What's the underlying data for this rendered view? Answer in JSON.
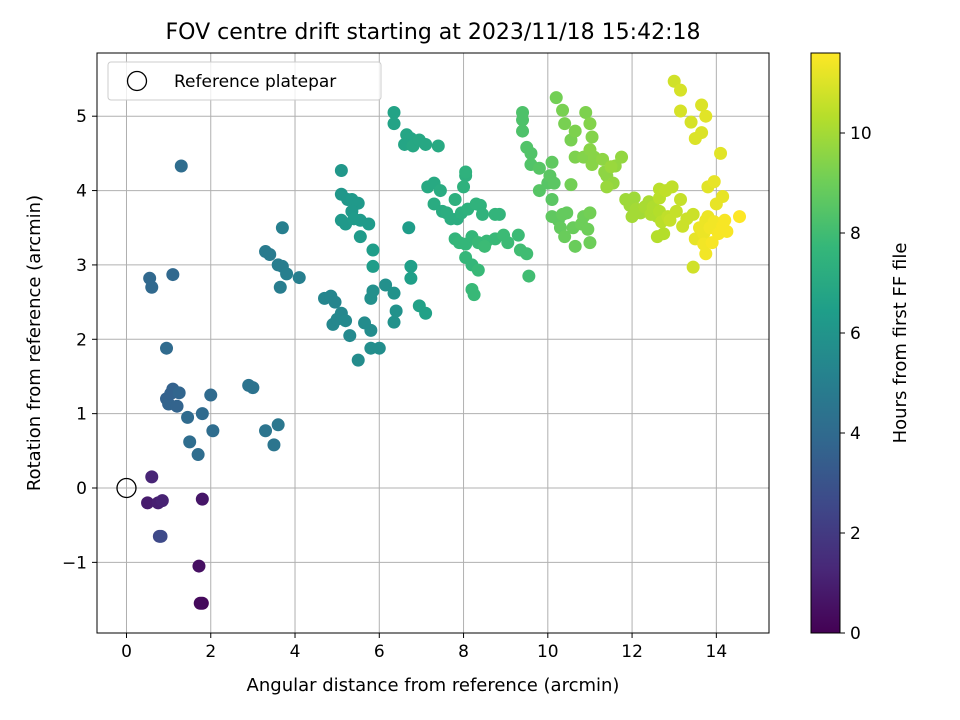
{
  "chart_data": {
    "type": "scatter",
    "title": "FOV centre drift starting at 2023/11/18 15:42:18",
    "xlabel": "Angular distance from reference (arcmin)",
    "ylabel": "Rotation from reference (arcmin)",
    "xlim": [
      -0.7,
      15.25
    ],
    "ylim": [
      -1.95,
      5.85
    ],
    "xticks": [
      0,
      2,
      4,
      6,
      8,
      10,
      12,
      14
    ],
    "yticks": [
      -1,
      0,
      1,
      2,
      3,
      4,
      5
    ],
    "grid": true,
    "legend": {
      "placement": "top-left",
      "entries": [
        "Reference platepar"
      ]
    },
    "reference_point": {
      "x": 0,
      "y": 0
    },
    "colorbar": {
      "label": "Hours from first FF file",
      "range": [
        0,
        11.6
      ],
      "ticks": [
        0,
        2,
        4,
        6,
        8,
        10
      ],
      "colormap": "viridis",
      "stops": [
        "#440154",
        "#482878",
        "#3e4989",
        "#31688e",
        "#26828e",
        "#1f9e89",
        "#35b779",
        "#6ece58",
        "#b5de2b",
        "#fde725"
      ]
    },
    "points": [
      {
        "x": 1.8,
        "y": -1.55,
        "c": 0.2
      },
      {
        "x": 1.75,
        "y": -1.55,
        "c": 0.3
      },
      {
        "x": 1.72,
        "y": -1.05,
        "c": 0.5
      },
      {
        "x": 1.8,
        "y": -0.15,
        "c": 0.7
      },
      {
        "x": 0.5,
        "y": -0.2,
        "c": 0.9
      },
      {
        "x": 0.75,
        "y": -0.2,
        "c": 1.0
      },
      {
        "x": 0.85,
        "y": -0.17,
        "c": 1.1
      },
      {
        "x": 0.6,
        "y": 0.15,
        "c": 1.2
      },
      {
        "x": 0.78,
        "y": -0.65,
        "c": 2.5
      },
      {
        "x": 0.82,
        "y": -0.65,
        "c": 2.6
      },
      {
        "x": 0.95,
        "y": 1.2,
        "c": 3.6
      },
      {
        "x": 1.0,
        "y": 1.13,
        "c": 3.7
      },
      {
        "x": 1.05,
        "y": 1.27,
        "c": 3.6
      },
      {
        "x": 1.1,
        "y": 1.33,
        "c": 3.6
      },
      {
        "x": 1.2,
        "y": 1.1,
        "c": 3.7
      },
      {
        "x": 1.25,
        "y": 1.28,
        "c": 3.8
      },
      {
        "x": 1.45,
        "y": 0.95,
        "c": 4.0
      },
      {
        "x": 1.5,
        "y": 0.62,
        "c": 4.1
      },
      {
        "x": 1.7,
        "y": 0.45,
        "c": 4.1
      },
      {
        "x": 1.8,
        "y": 1.0,
        "c": 4.0
      },
      {
        "x": 2.0,
        "y": 1.25,
        "c": 4.0
      },
      {
        "x": 2.05,
        "y": 0.77,
        "c": 4.1
      },
      {
        "x": 0.55,
        "y": 2.82,
        "c": 3.9
      },
      {
        "x": 0.6,
        "y": 2.7,
        "c": 3.9
      },
      {
        "x": 1.1,
        "y": 2.87,
        "c": 3.9
      },
      {
        "x": 0.95,
        "y": 1.88,
        "c": 4.0
      },
      {
        "x": 1.3,
        "y": 4.33,
        "c": 4.1
      },
      {
        "x": 2.9,
        "y": 1.38,
        "c": 4.4
      },
      {
        "x": 3.0,
        "y": 1.35,
        "c": 4.4
      },
      {
        "x": 3.3,
        "y": 0.77,
        "c": 4.5
      },
      {
        "x": 3.5,
        "y": 0.58,
        "c": 4.5
      },
      {
        "x": 3.6,
        "y": 0.85,
        "c": 4.6
      },
      {
        "x": 3.3,
        "y": 3.18,
        "c": 4.8
      },
      {
        "x": 3.4,
        "y": 3.14,
        "c": 4.8
      },
      {
        "x": 3.6,
        "y": 3.0,
        "c": 4.9
      },
      {
        "x": 3.7,
        "y": 2.98,
        "c": 4.9
      },
      {
        "x": 3.8,
        "y": 2.88,
        "c": 5.0
      },
      {
        "x": 3.65,
        "y": 2.7,
        "c": 4.9
      },
      {
        "x": 3.7,
        "y": 3.5,
        "c": 5.0
      },
      {
        "x": 4.1,
        "y": 2.83,
        "c": 5.0
      },
      {
        "x": 4.7,
        "y": 2.55,
        "c": 5.3
      },
      {
        "x": 4.85,
        "y": 2.58,
        "c": 5.3
      },
      {
        "x": 4.95,
        "y": 2.5,
        "c": 5.3
      },
      {
        "x": 4.9,
        "y": 2.2,
        "c": 5.4
      },
      {
        "x": 5.0,
        "y": 2.27,
        "c": 5.4
      },
      {
        "x": 5.1,
        "y": 2.35,
        "c": 5.4
      },
      {
        "x": 5.2,
        "y": 2.25,
        "c": 5.5
      },
      {
        "x": 5.3,
        "y": 2.05,
        "c": 5.5
      },
      {
        "x": 5.5,
        "y": 1.72,
        "c": 5.6
      },
      {
        "x": 5.65,
        "y": 2.22,
        "c": 5.6
      },
      {
        "x": 5.8,
        "y": 2.12,
        "c": 5.6
      },
      {
        "x": 5.8,
        "y": 1.88,
        "c": 5.7
      },
      {
        "x": 6.0,
        "y": 1.88,
        "c": 5.7
      },
      {
        "x": 5.8,
        "y": 2.55,
        "c": 5.8
      },
      {
        "x": 5.85,
        "y": 2.65,
        "c": 5.8
      },
      {
        "x": 6.15,
        "y": 2.73,
        "c": 5.8
      },
      {
        "x": 6.35,
        "y": 2.62,
        "c": 5.9
      },
      {
        "x": 6.35,
        "y": 2.23,
        "c": 5.9
      },
      {
        "x": 6.4,
        "y": 2.38,
        "c": 5.9
      },
      {
        "x": 5.1,
        "y": 4.27,
        "c": 6.1
      },
      {
        "x": 5.1,
        "y": 3.95,
        "c": 6.1
      },
      {
        "x": 5.25,
        "y": 3.88,
        "c": 6.1
      },
      {
        "x": 5.35,
        "y": 3.88,
        "c": 6.2
      },
      {
        "x": 5.5,
        "y": 3.83,
        "c": 6.2
      },
      {
        "x": 5.35,
        "y": 3.72,
        "c": 6.2
      },
      {
        "x": 5.1,
        "y": 3.6,
        "c": 6.2
      },
      {
        "x": 5.2,
        "y": 3.55,
        "c": 6.2
      },
      {
        "x": 5.4,
        "y": 3.62,
        "c": 6.3
      },
      {
        "x": 5.55,
        "y": 3.6,
        "c": 6.3
      },
      {
        "x": 5.75,
        "y": 3.55,
        "c": 6.3
      },
      {
        "x": 5.55,
        "y": 3.38,
        "c": 6.3
      },
      {
        "x": 5.85,
        "y": 3.2,
        "c": 6.4
      },
      {
        "x": 5.85,
        "y": 2.98,
        "c": 6.4
      },
      {
        "x": 6.7,
        "y": 3.5,
        "c": 6.4
      },
      {
        "x": 6.75,
        "y": 2.98,
        "c": 6.5
      },
      {
        "x": 6.75,
        "y": 2.82,
        "c": 6.5
      },
      {
        "x": 6.95,
        "y": 2.45,
        "c": 6.6
      },
      {
        "x": 7.1,
        "y": 2.35,
        "c": 6.6
      },
      {
        "x": 6.35,
        "y": 5.05,
        "c": 6.7
      },
      {
        "x": 6.35,
        "y": 4.9,
        "c": 6.7
      },
      {
        "x": 6.65,
        "y": 4.75,
        "c": 6.8
      },
      {
        "x": 6.75,
        "y": 4.7,
        "c": 6.8
      },
      {
        "x": 6.6,
        "y": 4.62,
        "c": 6.8
      },
      {
        "x": 6.8,
        "y": 4.6,
        "c": 6.9
      },
      {
        "x": 6.95,
        "y": 4.68,
        "c": 6.9
      },
      {
        "x": 7.1,
        "y": 4.62,
        "c": 6.9
      },
      {
        "x": 7.4,
        "y": 4.6,
        "c": 7.0
      },
      {
        "x": 7.15,
        "y": 4.05,
        "c": 7.0
      },
      {
        "x": 7.3,
        "y": 4.1,
        "c": 7.0
      },
      {
        "x": 7.45,
        "y": 4.0,
        "c": 7.1
      },
      {
        "x": 7.3,
        "y": 3.82,
        "c": 7.1
      },
      {
        "x": 7.5,
        "y": 3.72,
        "c": 7.1
      },
      {
        "x": 7.6,
        "y": 3.7,
        "c": 7.2
      },
      {
        "x": 7.7,
        "y": 3.62,
        "c": 7.2
      },
      {
        "x": 7.85,
        "y": 3.62,
        "c": 7.2
      },
      {
        "x": 7.95,
        "y": 3.7,
        "c": 7.3
      },
      {
        "x": 7.8,
        "y": 3.88,
        "c": 7.3
      },
      {
        "x": 8.05,
        "y": 4.2,
        "c": 7.3
      },
      {
        "x": 8.05,
        "y": 4.25,
        "c": 7.4
      },
      {
        "x": 8.0,
        "y": 4.05,
        "c": 7.4
      },
      {
        "x": 8.1,
        "y": 3.75,
        "c": 7.4
      },
      {
        "x": 8.3,
        "y": 3.82,
        "c": 7.5
      },
      {
        "x": 8.4,
        "y": 3.8,
        "c": 7.5
      },
      {
        "x": 8.45,
        "y": 3.68,
        "c": 7.5
      },
      {
        "x": 8.75,
        "y": 3.68,
        "c": 7.6
      },
      {
        "x": 8.85,
        "y": 3.68,
        "c": 7.6
      },
      {
        "x": 7.8,
        "y": 3.35,
        "c": 7.6
      },
      {
        "x": 7.9,
        "y": 3.3,
        "c": 7.7
      },
      {
        "x": 8.05,
        "y": 3.28,
        "c": 7.7
      },
      {
        "x": 8.2,
        "y": 3.38,
        "c": 7.7
      },
      {
        "x": 8.35,
        "y": 3.3,
        "c": 7.8
      },
      {
        "x": 8.55,
        "y": 3.32,
        "c": 7.8
      },
      {
        "x": 8.75,
        "y": 3.35,
        "c": 7.8
      },
      {
        "x": 8.95,
        "y": 3.4,
        "c": 7.9
      },
      {
        "x": 9.05,
        "y": 3.3,
        "c": 7.9
      },
      {
        "x": 9.3,
        "y": 3.4,
        "c": 7.9
      },
      {
        "x": 9.35,
        "y": 3.2,
        "c": 8.0
      },
      {
        "x": 9.5,
        "y": 3.15,
        "c": 8.0
      },
      {
        "x": 9.55,
        "y": 2.85,
        "c": 8.0
      },
      {
        "x": 8.05,
        "y": 3.1,
        "c": 7.7
      },
      {
        "x": 8.2,
        "y": 3.0,
        "c": 7.7
      },
      {
        "x": 8.35,
        "y": 2.93,
        "c": 7.8
      },
      {
        "x": 8.2,
        "y": 2.67,
        "c": 7.8
      },
      {
        "x": 8.25,
        "y": 2.6,
        "c": 7.8
      },
      {
        "x": 8.5,
        "y": 3.25,
        "c": 7.9
      },
      {
        "x": 9.4,
        "y": 5.05,
        "c": 8.3
      },
      {
        "x": 9.4,
        "y": 4.95,
        "c": 8.3
      },
      {
        "x": 9.4,
        "y": 4.8,
        "c": 8.3
      },
      {
        "x": 9.5,
        "y": 4.58,
        "c": 8.4
      },
      {
        "x": 9.6,
        "y": 4.5,
        "c": 8.4
      },
      {
        "x": 9.6,
        "y": 4.35,
        "c": 8.4
      },
      {
        "x": 9.8,
        "y": 4.3,
        "c": 8.5
      },
      {
        "x": 9.8,
        "y": 4.0,
        "c": 8.5
      },
      {
        "x": 10.0,
        "y": 4.1,
        "c": 8.5
      },
      {
        "x": 10.05,
        "y": 4.2,
        "c": 8.6
      },
      {
        "x": 10.15,
        "y": 4.1,
        "c": 8.6
      },
      {
        "x": 10.1,
        "y": 3.88,
        "c": 8.6
      },
      {
        "x": 10.1,
        "y": 4.38,
        "c": 8.7
      },
      {
        "x": 10.1,
        "y": 3.65,
        "c": 8.7
      },
      {
        "x": 10.25,
        "y": 3.6,
        "c": 8.7
      },
      {
        "x": 10.35,
        "y": 3.68,
        "c": 8.8
      },
      {
        "x": 10.45,
        "y": 3.7,
        "c": 8.8
      },
      {
        "x": 10.3,
        "y": 3.5,
        "c": 8.8
      },
      {
        "x": 10.4,
        "y": 3.38,
        "c": 8.9
      },
      {
        "x": 10.6,
        "y": 3.5,
        "c": 8.9
      },
      {
        "x": 10.65,
        "y": 3.25,
        "c": 8.9
      },
      {
        "x": 10.8,
        "y": 3.55,
        "c": 9.0
      },
      {
        "x": 10.85,
        "y": 3.65,
        "c": 9.0
      },
      {
        "x": 10.95,
        "y": 3.48,
        "c": 9.0
      },
      {
        "x": 11.0,
        "y": 3.3,
        "c": 9.0
      },
      {
        "x": 11.0,
        "y": 3.7,
        "c": 9.1
      },
      {
        "x": 10.55,
        "y": 4.08,
        "c": 9.1
      },
      {
        "x": 10.2,
        "y": 5.25,
        "c": 9.1
      },
      {
        "x": 10.35,
        "y": 5.08,
        "c": 9.2
      },
      {
        "x": 10.4,
        "y": 4.9,
        "c": 9.2
      },
      {
        "x": 10.55,
        "y": 4.68,
        "c": 9.2
      },
      {
        "x": 10.65,
        "y": 4.8,
        "c": 9.3
      },
      {
        "x": 10.65,
        "y": 4.45,
        "c": 9.3
      },
      {
        "x": 10.9,
        "y": 5.05,
        "c": 9.3
      },
      {
        "x": 11.0,
        "y": 4.9,
        "c": 9.4
      },
      {
        "x": 11.05,
        "y": 4.72,
        "c": 9.4
      },
      {
        "x": 10.85,
        "y": 4.45,
        "c": 9.4
      },
      {
        "x": 11.0,
        "y": 4.55,
        "c": 9.5
      },
      {
        "x": 11.1,
        "y": 4.45,
        "c": 9.5
      },
      {
        "x": 11.05,
        "y": 4.35,
        "c": 9.5
      },
      {
        "x": 11.3,
        "y": 4.42,
        "c": 9.6
      },
      {
        "x": 11.35,
        "y": 4.25,
        "c": 9.6
      },
      {
        "x": 11.4,
        "y": 4.2,
        "c": 9.6
      },
      {
        "x": 11.55,
        "y": 4.1,
        "c": 9.7
      },
      {
        "x": 11.6,
        "y": 4.33,
        "c": 9.7
      },
      {
        "x": 11.75,
        "y": 4.45,
        "c": 9.7
      },
      {
        "x": 11.4,
        "y": 4.05,
        "c": 9.8
      },
      {
        "x": 11.5,
        "y": 4.32,
        "c": 9.8
      },
      {
        "x": 11.85,
        "y": 3.88,
        "c": 9.9
      },
      {
        "x": 11.95,
        "y": 3.8,
        "c": 9.9
      },
      {
        "x": 12.05,
        "y": 3.9,
        "c": 9.9
      },
      {
        "x": 12.1,
        "y": 3.75,
        "c": 10.0
      },
      {
        "x": 12.0,
        "y": 3.65,
        "c": 10.0
      },
      {
        "x": 12.2,
        "y": 3.7,
        "c": 10.0
      },
      {
        "x": 12.3,
        "y": 3.78,
        "c": 10.1
      },
      {
        "x": 12.4,
        "y": 3.85,
        "c": 10.1
      },
      {
        "x": 12.5,
        "y": 3.78,
        "c": 10.2
      },
      {
        "x": 12.45,
        "y": 3.68,
        "c": 10.2
      },
      {
        "x": 12.6,
        "y": 3.65,
        "c": 10.2
      },
      {
        "x": 12.65,
        "y": 3.72,
        "c": 10.3
      },
      {
        "x": 12.6,
        "y": 3.38,
        "c": 10.3
      },
      {
        "x": 12.75,
        "y": 3.42,
        "c": 10.3
      },
      {
        "x": 12.7,
        "y": 3.58,
        "c": 10.4
      },
      {
        "x": 12.65,
        "y": 3.9,
        "c": 10.4
      },
      {
        "x": 12.65,
        "y": 4.02,
        "c": 10.4
      },
      {
        "x": 12.8,
        "y": 4.0,
        "c": 10.5
      },
      {
        "x": 12.95,
        "y": 4.05,
        "c": 10.5
      },
      {
        "x": 12.85,
        "y": 3.65,
        "c": 10.5
      },
      {
        "x": 12.9,
        "y": 3.6,
        "c": 10.6
      },
      {
        "x": 13.05,
        "y": 3.72,
        "c": 10.6
      },
      {
        "x": 13.15,
        "y": 3.88,
        "c": 10.6
      },
      {
        "x": 13.2,
        "y": 3.52,
        "c": 10.7
      },
      {
        "x": 13.3,
        "y": 3.62,
        "c": 10.7
      },
      {
        "x": 13.45,
        "y": 3.68,
        "c": 10.7
      },
      {
        "x": 13.45,
        "y": 2.97,
        "c": 10.8
      },
      {
        "x": 13.0,
        "y": 5.47,
        "c": 10.8
      },
      {
        "x": 13.15,
        "y": 5.35,
        "c": 10.9
      },
      {
        "x": 13.15,
        "y": 5.07,
        "c": 10.9
      },
      {
        "x": 13.4,
        "y": 4.92,
        "c": 10.9
      },
      {
        "x": 13.5,
        "y": 4.7,
        "c": 11.0
      },
      {
        "x": 13.65,
        "y": 4.78,
        "c": 11.0
      },
      {
        "x": 13.65,
        "y": 5.15,
        "c": 11.0
      },
      {
        "x": 13.75,
        "y": 5.0,
        "c": 11.1
      },
      {
        "x": 14.1,
        "y": 4.5,
        "c": 11.1
      },
      {
        "x": 13.8,
        "y": 4.05,
        "c": 11.1
      },
      {
        "x": 13.95,
        "y": 4.12,
        "c": 11.2
      },
      {
        "x": 14.15,
        "y": 3.92,
        "c": 11.2
      },
      {
        "x": 14.0,
        "y": 3.82,
        "c": 11.2
      },
      {
        "x": 13.5,
        "y": 3.35,
        "c": 11.2
      },
      {
        "x": 13.6,
        "y": 3.5,
        "c": 11.3
      },
      {
        "x": 13.7,
        "y": 3.42,
        "c": 11.3
      },
      {
        "x": 13.75,
        "y": 3.6,
        "c": 11.3
      },
      {
        "x": 13.8,
        "y": 3.65,
        "c": 11.3
      },
      {
        "x": 13.85,
        "y": 3.5,
        "c": 11.4
      },
      {
        "x": 13.95,
        "y": 3.58,
        "c": 11.4
      },
      {
        "x": 13.7,
        "y": 3.28,
        "c": 11.4
      },
      {
        "x": 13.75,
        "y": 3.15,
        "c": 11.4
      },
      {
        "x": 13.9,
        "y": 3.3,
        "c": 11.5
      },
      {
        "x": 14.05,
        "y": 3.42,
        "c": 11.5
      },
      {
        "x": 14.15,
        "y": 3.52,
        "c": 11.5
      },
      {
        "x": 14.2,
        "y": 3.6,
        "c": 11.5
      },
      {
        "x": 14.25,
        "y": 3.45,
        "c": 11.5
      },
      {
        "x": 14.55,
        "y": 3.65,
        "c": 11.6
      }
    ]
  }
}
